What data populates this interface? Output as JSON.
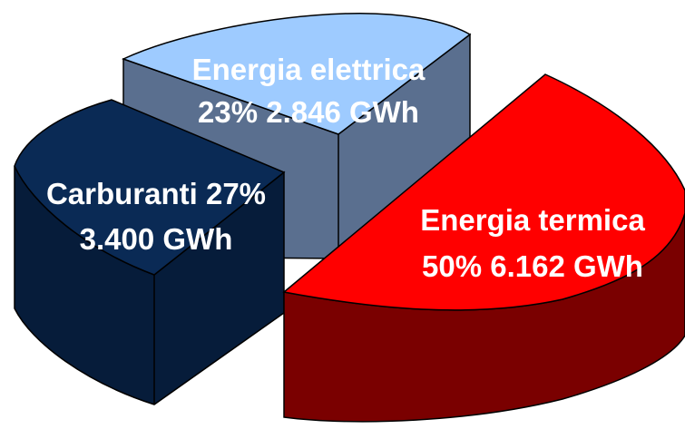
{
  "chart_data": {
    "type": "pie",
    "style": "3d-exploded",
    "title": "",
    "legend": "none",
    "slices": [
      {
        "name": "Energia elettrica",
        "percent": 23,
        "value": 2846,
        "unit": "GWh",
        "line1": "Energia elettrica",
        "line2": "23% 2.846 GWh",
        "top_color": "#9ecbff",
        "side_color": "#5a6f8f"
      },
      {
        "name": "Carburanti",
        "percent": 27,
        "value": 3400,
        "unit": "GWh",
        "line1": "Carburanti 27%",
        "line2": "3.400 GWh",
        "top_color": "#0a2a55",
        "side_color": "#061c3a"
      },
      {
        "name": "Energia termica",
        "percent": 50,
        "value": 6162,
        "unit": "GWh",
        "line1": "Energia termica",
        "line2": "50% 6.162 GWh",
        "top_color": "#ff0000",
        "side_color": "#7a0000"
      }
    ]
  }
}
